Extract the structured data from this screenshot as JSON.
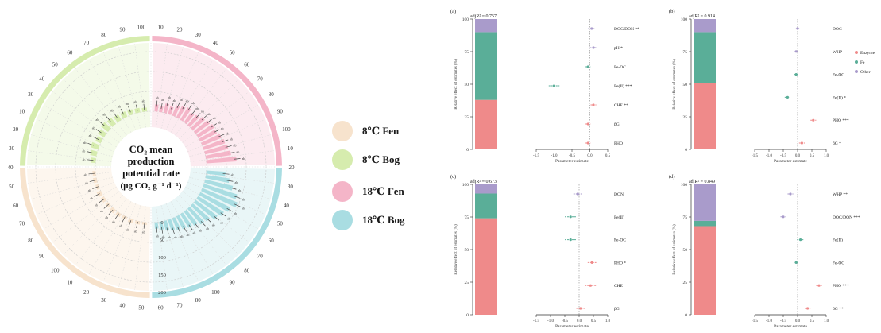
{
  "colors": {
    "fen8": "#f7e3cd",
    "bog8": "#d6ecae",
    "fen18": "#f4b5c8",
    "bog18": "#a9dde2",
    "fen8_bg": "#fdf6ee",
    "bog8_bg": "#f4fae9",
    "fen18_bg": "#fcebf0",
    "bog18_bg": "#e9f6f7",
    "enzyme": "#ef8a8a",
    "fe": "#5aae98",
    "other": "#a99bcb"
  },
  "circular": {
    "center_lines": [
      "CO₂ mean",
      "production",
      "potential rate",
      "(μg CO₂ g⁻¹ d⁻¹)"
    ],
    "legend": [
      {
        "label": "8℃ Fen",
        "color": "#f7e3cd"
      },
      {
        "label": "8℃ Bog",
        "color": "#d6ecae"
      },
      {
        "label": "18℃ Fen",
        "color": "#f4b5c8"
      },
      {
        "label": "18℃ Bog",
        "color": "#a9dde2"
      }
    ],
    "outer_ticks": [
      "10",
      "20",
      "30",
      "40",
      "50",
      "60",
      "70",
      "80",
      "90",
      "100",
      "10",
      "20",
      "30",
      "40",
      "50",
      "60",
      "70",
      "80",
      "90",
      "100",
      "80",
      "70",
      "60",
      "50",
      "40",
      "30",
      "20",
      "10",
      "100",
      "90",
      "80",
      "70",
      "60",
      "50",
      "40",
      "30",
      "20",
      "10",
      "30",
      "40",
      "50",
      "60",
      "70",
      "80",
      "90",
      "100"
    ],
    "radial_ticks": [
      "0",
      "50",
      "100",
      "150",
      "200"
    ],
    "bars": {
      "fen18": [
        22,
        18,
        30,
        25,
        35,
        40,
        45,
        38,
        42,
        50,
        55,
        60,
        58,
        65,
        70,
        75,
        80,
        95
      ],
      "bog18": [
        60,
        75,
        90,
        110,
        120,
        105,
        95,
        85,
        70,
        65,
        55,
        50,
        45,
        40,
        35,
        30,
        25,
        20
      ],
      "fen8": [
        8,
        10,
        12,
        9,
        11,
        13,
        10,
        12,
        14,
        9,
        11,
        10
      ],
      "bog8": [
        15,
        20,
        25,
        18,
        22,
        28,
        24,
        20,
        18,
        16,
        14,
        12
      ]
    }
  },
  "chart_data": [
    {
      "type": "bar",
      "panel": "(a)",
      "fit": "adjR² = 0.757",
      "ylabel": "Relative effect of estimates (%)",
      "yticks": [
        "0",
        "25",
        "50",
        "75",
        "100"
      ],
      "stack": [
        {
          "name": "Enzyme",
          "value": 38
        },
        {
          "name": "Fe",
          "value": 52
        },
        {
          "name": "Other",
          "value": 10
        }
      ],
      "estimates": [
        {
          "label": "DOC/DON **",
          "value": 0.05,
          "low": -0.05,
          "high": 0.15,
          "group": "other"
        },
        {
          "label": "pH *",
          "value": 0.1,
          "low": 0.0,
          "high": 0.2,
          "group": "other"
        },
        {
          "label": "Fe-OC",
          "value": -0.05,
          "low": -0.12,
          "high": 0.02,
          "group": "fe"
        },
        {
          "label": "Fe(II) ***",
          "value": -1.0,
          "low": -1.15,
          "high": -0.85,
          "group": "fe"
        },
        {
          "label": "CHE **",
          "value": 0.1,
          "low": 0.02,
          "high": 0.18,
          "group": "enzyme"
        },
        {
          "label": "βG",
          "value": -0.05,
          "low": -0.12,
          "high": 0.02,
          "group": "enzyme"
        },
        {
          "label": "PHO",
          "value": -0.05,
          "low": -0.12,
          "high": 0.02,
          "group": "enzyme"
        }
      ],
      "xticks": [
        "-1.5",
        "-1.0",
        "-0.5",
        "0.0",
        "0.5"
      ],
      "xlim": [
        -1.5,
        0.5
      ],
      "xlabel": "Parameter estimate"
    },
    {
      "type": "bar",
      "panel": "(b)",
      "fit": "adjR² = 0.914",
      "ylabel": "Relative effect of estimates (%)",
      "yticks": [
        "0",
        "25",
        "50",
        "75",
        "100"
      ],
      "stack": [
        {
          "name": "Enzyme",
          "value": 51
        },
        {
          "name": "Fe",
          "value": 39
        },
        {
          "name": "Other",
          "value": 10
        }
      ],
      "estimates": [
        {
          "label": "DOC",
          "value": 0.0,
          "low": -0.06,
          "high": 0.06,
          "group": "other"
        },
        {
          "label": "WHP",
          "value": -0.05,
          "low": -0.1,
          "high": 0.0,
          "group": "other"
        },
        {
          "label": "Fe-OC",
          "value": -0.05,
          "low": -0.12,
          "high": 0.02,
          "group": "fe"
        },
        {
          "label": "Fe(II) *",
          "value": -0.35,
          "low": -0.45,
          "high": -0.25,
          "group": "fe"
        },
        {
          "label": "PHO ***",
          "value": 0.55,
          "low": 0.45,
          "high": 0.65,
          "group": "enzyme"
        },
        {
          "label": "βG *",
          "value": 0.15,
          "low": 0.05,
          "high": 0.25,
          "group": "enzyme"
        }
      ],
      "xticks": [
        "-1.5",
        "-1.0",
        "-0.5",
        "0.0",
        "0.5",
        "1.0"
      ],
      "xlim": [
        -1.5,
        1.0
      ],
      "xlabel": "Parameter estimate",
      "legend": [
        {
          "name": "Enzyme",
          "color": "#ef8a8a"
        },
        {
          "name": "Fe",
          "color": "#5aae98"
        },
        {
          "name": "Other",
          "color": "#a99bcb"
        }
      ]
    },
    {
      "type": "bar",
      "panel": "(c)",
      "fit": "adjR² = 0.673",
      "ylabel": "Relative effect of estimates (%)",
      "yticks": [
        "0",
        "25",
        "50",
        "75",
        "100"
      ],
      "stack": [
        {
          "name": "Enzyme",
          "value": 74
        },
        {
          "name": "Fe",
          "value": 19
        },
        {
          "name": "Other",
          "value": 7
        }
      ],
      "estimates": [
        {
          "label": "DON",
          "value": -0.05,
          "low": -0.2,
          "high": 0.1,
          "group": "other"
        },
        {
          "label": "Fe(II)",
          "value": -0.3,
          "low": -0.5,
          "high": -0.1,
          "group": "fe"
        },
        {
          "label": "Fe-OC",
          "value": -0.3,
          "low": -0.5,
          "high": -0.1,
          "group": "fe"
        },
        {
          "label": "PHO *",
          "value": 0.45,
          "low": 0.3,
          "high": 0.6,
          "group": "enzyme"
        },
        {
          "label": "CHE",
          "value": 0.4,
          "low": 0.2,
          "high": 0.6,
          "group": "enzyme"
        },
        {
          "label": "βG",
          "value": 0.05,
          "low": -0.1,
          "high": 0.2,
          "group": "enzyme"
        }
      ],
      "xticks": [
        "-1.5",
        "-1.0",
        "-0.5",
        "0.0",
        "0.5",
        "1.0"
      ],
      "xlim": [
        -1.5,
        1.0
      ],
      "xlabel": "Parameter estimate"
    },
    {
      "type": "bar",
      "panel": "(d)",
      "fit": "adjR² = 0.849",
      "ylabel": "Relative effect of estimates (%)",
      "yticks": [
        "0",
        "25",
        "50",
        "75",
        "100"
      ],
      "stack": [
        {
          "name": "Enzyme",
          "value": 68
        },
        {
          "name": "Fe",
          "value": 4
        },
        {
          "name": "Other",
          "value": 28
        }
      ],
      "estimates": [
        {
          "label": "WHP **",
          "value": -0.25,
          "low": -0.35,
          "high": -0.15,
          "group": "other"
        },
        {
          "label": "DOC/DON ***",
          "value": -0.5,
          "low": -0.6,
          "high": -0.4,
          "group": "other"
        },
        {
          "label": "Fe(II)",
          "value": 0.1,
          "low": -0.02,
          "high": 0.22,
          "group": "fe"
        },
        {
          "label": "Fe-OC",
          "value": -0.05,
          "low": -0.1,
          "high": 0.0,
          "group": "fe"
        },
        {
          "label": "PHO ***",
          "value": 0.75,
          "low": 0.65,
          "high": 0.85,
          "group": "enzyme"
        },
        {
          "label": "βG **",
          "value": 0.35,
          "low": 0.25,
          "high": 0.45,
          "group": "enzyme"
        }
      ],
      "xticks": [
        "-1.5",
        "-1.0",
        "-0.5",
        "0.0",
        "0.5",
        "1.0"
      ],
      "xlim": [
        -1.5,
        1.0
      ],
      "xlabel": "Parameter estimate"
    }
  ]
}
